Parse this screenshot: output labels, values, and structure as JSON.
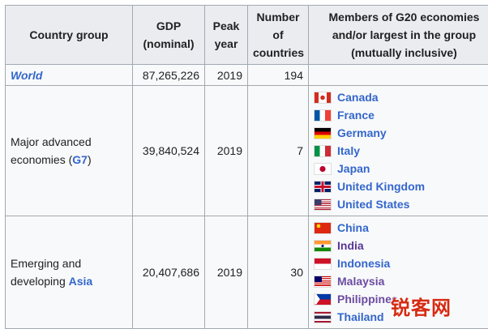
{
  "header": [
    "Country group",
    "GDP (nominal)",
    "Peak year",
    "Number of countries",
    "Members of G20 economies and/or largest in the group (mutually inclusive)"
  ],
  "rows": [
    {
      "group": {
        "link": "World"
      },
      "gdp": "87,265,226",
      "peak_year": 2019,
      "countries": 194,
      "members": []
    },
    {
      "group": {
        "text": "Major advanced economies (",
        "link": "G7",
        "text_after": ")"
      },
      "gdp": "39,840,524",
      "peak_year": 2019,
      "countries": 7,
      "members": [
        "Canada",
        "France",
        "Germany",
        "Italy",
        "Japan",
        "United Kingdom",
        "United States"
      ]
    },
    {
      "group": {
        "text": "Emerging and developing ",
        "link": "Asia"
      },
      "gdp": "20,407,686",
      "peak_year": 2019,
      "countries": 30,
      "members": [
        "China",
        "India",
        "Indonesia",
        "Malaysia",
        "Philippines",
        "Thailand"
      ]
    }
  ],
  "watermark": "锐客网"
}
